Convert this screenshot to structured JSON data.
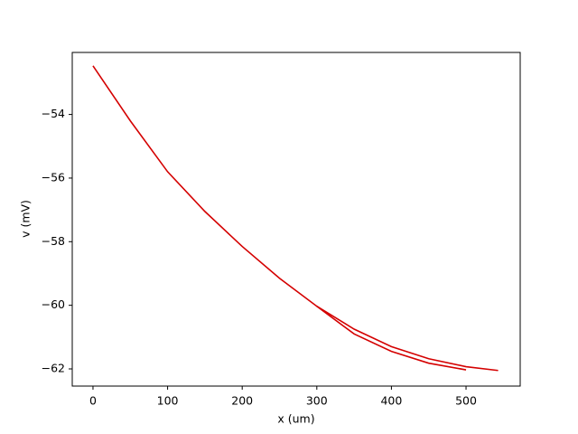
{
  "chart_data": {
    "type": "line",
    "x_label": "x (um)",
    "y_label": "v (mV)",
    "series": [
      {
        "color": "#d40000",
        "x": [
          0,
          50,
          100,
          150,
          200,
          250,
          300,
          350,
          400,
          450,
          500,
          543
        ],
        "values": [
          -52.47,
          -54.2,
          -55.8,
          -57.05,
          -58.15,
          -59.15,
          -60.03,
          -60.75,
          -61.3,
          -61.68,
          -61.93,
          -62.05
        ]
      },
      {
        "color": "#d40000",
        "x": [
          300,
          350,
          400,
          450,
          500
        ],
        "values": [
          -60.03,
          -60.9,
          -61.45,
          -61.82,
          -62.03
        ]
      }
    ],
    "xlim": [
      -27.8,
      572.6
    ],
    "ylim": [
      -62.54,
      -52.05
    ],
    "xticks": [
      0,
      100,
      200,
      300,
      400,
      500
    ],
    "yticks": [
      {
        "value": -62,
        "label": "−62"
      },
      {
        "value": -60,
        "label": "−60"
      },
      {
        "value": -58,
        "label": "−58"
      },
      {
        "value": -56,
        "label": "−56"
      },
      {
        "value": -54,
        "label": "−54"
      }
    ],
    "grid": false
  }
}
